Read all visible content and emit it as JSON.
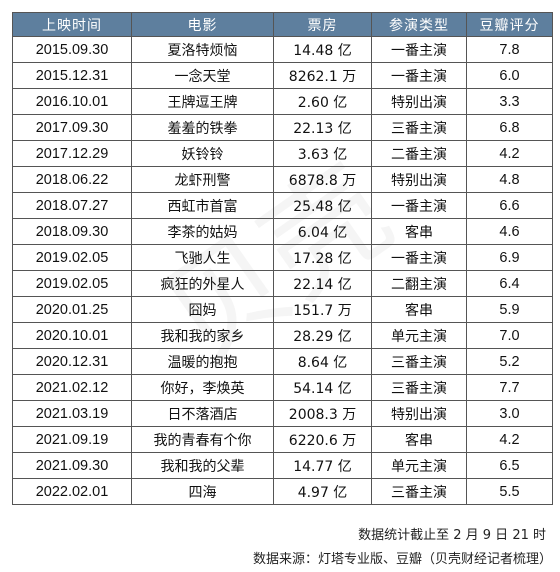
{
  "table": {
    "headers": [
      "上映时间",
      "电影",
      "票房",
      "参演类型",
      "豆瓣评分"
    ],
    "rows": [
      [
        "2015.09.30",
        "夏洛特烦恼",
        "14.48 亿",
        "一番主演",
        "7.8"
      ],
      [
        "2015.12.31",
        "一念天堂",
        "8262.1 万",
        "一番主演",
        "6.0"
      ],
      [
        "2016.10.01",
        "王牌逗王牌",
        "2.60 亿",
        "特别出演",
        "3.3"
      ],
      [
        "2017.09.30",
        "羞羞的铁拳",
        "22.13 亿",
        "三番主演",
        "6.8"
      ],
      [
        "2017.12.29",
        "妖铃铃",
        "3.63 亿",
        "二番主演",
        "4.2"
      ],
      [
        "2018.06.22",
        "龙虾刑警",
        "6878.8 万",
        "特别出演",
        "4.8"
      ],
      [
        "2018.07.27",
        "西虹市首富",
        "25.48 亿",
        "一番主演",
        "6.6"
      ],
      [
        "2018.09.30",
        "李茶的姑妈",
        "6.04 亿",
        "客串",
        "4.6"
      ],
      [
        "2019.02.05",
        "飞驰人生",
        "17.28 亿",
        "一番主演",
        "6.9"
      ],
      [
        "2019.02.05",
        "疯狂的外星人",
        "22.14 亿",
        "二翻主演",
        "6.4"
      ],
      [
        "2020.01.25",
        "囧妈",
        "151.7 万",
        "客串",
        "5.9"
      ],
      [
        "2020.10.01",
        "我和我的家乡",
        "28.29 亿",
        "单元主演",
        "7.0"
      ],
      [
        "2020.12.31",
        "温暖的抱抱",
        "8.64 亿",
        "三番主演",
        "5.2"
      ],
      [
        "2021.02.12",
        "你好，李焕英",
        "54.14 亿",
        "三番主演",
        "7.7"
      ],
      [
        "2021.03.19",
        "日不落酒店",
        "2008.3 万",
        "特别出演",
        "3.0"
      ],
      [
        "2021.09.19",
        "我的青春有个你",
        "6220.6 万",
        "客串",
        "4.2"
      ],
      [
        "2021.09.30",
        "我和我的父辈",
        "14.77 亿",
        "单元主演",
        "6.5"
      ],
      [
        "2022.02.01",
        "四海",
        "4.97 亿",
        "三番主演",
        "5.5"
      ]
    ]
  },
  "notes": {
    "cutoff": "数据统计截止至 2 月 9 日 21 时",
    "source": "数据来源：灯塔专业版、豆瓣（贝壳财经记者梳理）"
  },
  "colors": {
    "header_bg": "#5e7f9e",
    "header_text": "#ffffff",
    "border": "#555555"
  }
}
